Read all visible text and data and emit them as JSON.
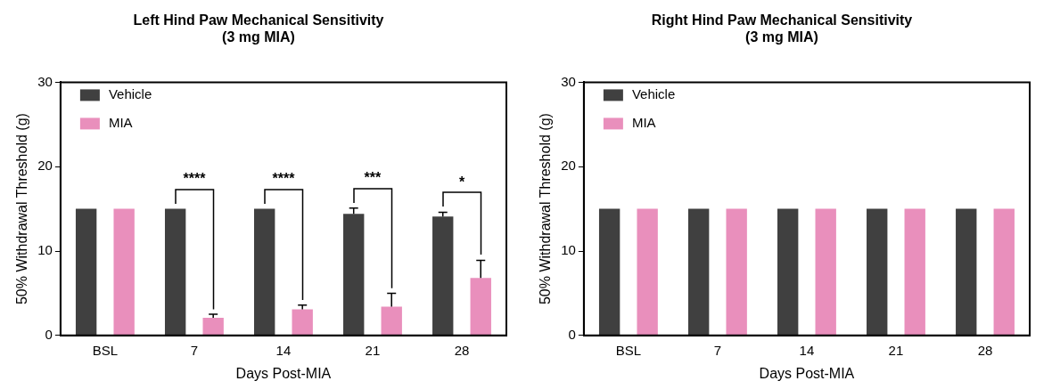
{
  "chart_data": [
    {
      "type": "bar",
      "title": "Left Hind Paw Mechanical Sensitivity\n(3 mg MIA)",
      "xlabel": "Days Post-MIA",
      "ylabel": "50% Withdrawal Threshold (g)",
      "categories": [
        "BSL",
        "7",
        "14",
        "21",
        "28"
      ],
      "ylim": [
        0,
        30
      ],
      "yticks": [
        0,
        10,
        20,
        30
      ],
      "grid": false,
      "legend": "top left",
      "series": [
        {
          "name": "Vehicle",
          "color": "#404040",
          "values": [
            15,
            15,
            15,
            14.4,
            14.1
          ],
          "errors": [
            null,
            null,
            null,
            [
              14.4,
              15.1
            ],
            [
              14.1,
              14.6
            ]
          ]
        },
        {
          "name": "MIA",
          "color": "#e98fbc",
          "values": [
            15,
            2.1,
            3.1,
            3.4,
            6.8
          ],
          "errors": [
            null,
            [
              2.1,
              2.5
            ],
            [
              3.1,
              3.6
            ],
            [
              3.4,
              5.0
            ],
            [
              6.8,
              8.9
            ]
          ]
        }
      ],
      "annotations": [
        "****",
        "****",
        "***",
        "*"
      ]
    },
    {
      "type": "bar",
      "title": "Right Hind Paw Mechanical Sensitivity\n(3 mg MIA)",
      "xlabel": "Days Post-MIA",
      "ylabel": "50% Withdrawal Threshold (g)",
      "categories": [
        "BSL",
        "7",
        "14",
        "21",
        "28"
      ],
      "ylim": [
        0,
        30
      ],
      "yticks": [
        0,
        10,
        20,
        30
      ],
      "grid": false,
      "legend": "top left",
      "series": [
        {
          "name": "Vehicle",
          "color": "#404040",
          "values": [
            15,
            15,
            15,
            15,
            15
          ]
        },
        {
          "name": "MIA",
          "color": "#e98fbc",
          "values": [
            15,
            15,
            15,
            15,
            15
          ]
        }
      ]
    }
  ]
}
